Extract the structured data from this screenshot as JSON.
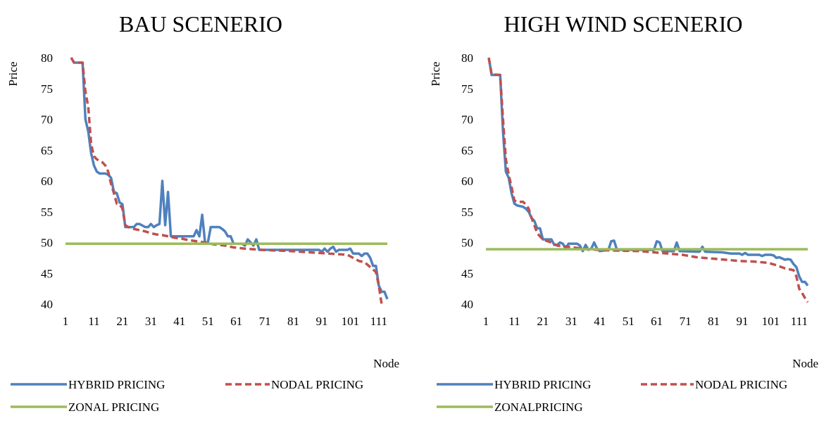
{
  "chart_data": [
    {
      "type": "line",
      "title": "BAU SCENERIO",
      "xlabel": "Node",
      "ylabel": "Price",
      "ylim": [
        40,
        80
      ],
      "xlim": [
        1,
        114
      ],
      "yticks": [
        "40",
        "45",
        "50",
        "55",
        "60",
        "65",
        "70",
        "75",
        "80"
      ],
      "xticks": [
        "1",
        "11",
        "21",
        "31",
        "41",
        "51",
        "61",
        "71",
        "81",
        "91",
        "101",
        "111"
      ],
      "legend_position": "bottom",
      "grid": false,
      "series": [
        {
          "name": "HYBRID PRICING",
          "color": "#4f81bd",
          "dash": "solid",
          "points": [
            [
              3,
              80
            ],
            [
              4,
              79.2
            ],
            [
              7,
              79.2
            ],
            [
              8,
              70
            ],
            [
              9,
              68
            ],
            [
              10,
              64.5
            ],
            [
              11,
              62.5
            ],
            [
              12,
              61.5
            ],
            [
              13,
              61.2
            ],
            [
              15,
              61.2
            ],
            [
              16,
              61
            ],
            [
              17,
              60.5
            ],
            [
              18,
              58.2
            ],
            [
              19,
              58
            ],
            [
              20,
              56.5
            ],
            [
              21,
              56.2
            ],
            [
              22,
              52.5
            ],
            [
              23,
              52.5
            ],
            [
              25,
              52.5
            ],
            [
              26,
              53
            ],
            [
              27,
              53
            ],
            [
              29,
              52.5
            ],
            [
              30,
              52.5
            ],
            [
              31,
              53
            ],
            [
              32,
              52.5
            ],
            [
              33,
              52.8
            ],
            [
              34,
              53
            ],
            [
              35,
              60
            ],
            [
              36,
              52.8
            ],
            [
              37,
              58.2
            ],
            [
              38,
              51
            ],
            [
              39,
              51
            ],
            [
              45,
              51
            ],
            [
              46,
              51
            ],
            [
              47,
              52
            ],
            [
              48,
              51
            ],
            [
              49,
              54.5
            ],
            [
              50,
              50
            ],
            [
              51,
              50
            ],
            [
              52,
              52.5
            ],
            [
              55,
              52.5
            ],
            [
              56,
              52.2
            ],
            [
              57,
              51.8
            ],
            [
              58,
              51
            ],
            [
              59,
              51
            ],
            [
              60,
              49.8
            ],
            [
              63,
              49.8
            ],
            [
              64,
              49.5
            ],
            [
              65,
              50.5
            ],
            [
              66,
              50
            ],
            [
              67,
              49.5
            ],
            [
              68,
              50.5
            ],
            [
              69,
              48.8
            ],
            [
              90,
              48.8
            ],
            [
              91,
              48.5
            ],
            [
              92,
              49
            ],
            [
              93,
              48.5
            ],
            [
              94,
              49
            ],
            [
              95,
              49.3
            ],
            [
              96,
              48.5
            ],
            [
              97,
              48.8
            ],
            [
              100,
              48.8
            ],
            [
              101,
              49
            ],
            [
              102,
              48.2
            ],
            [
              104,
              48.2
            ],
            [
              105,
              47.8
            ],
            [
              106,
              48.2
            ],
            [
              107,
              48.2
            ],
            [
              108,
              47.5
            ],
            [
              109,
              46.2
            ],
            [
              110,
              46.2
            ],
            [
              111,
              43
            ],
            [
              112,
              42
            ],
            [
              113,
              42
            ],
            [
              114,
              40.8
            ]
          ]
        },
        {
          "name": "NODAL PRICING",
          "color": "#c0504d",
          "dash": "dashed",
          "points": [
            [
              3,
              80
            ],
            [
              4,
              79.2
            ],
            [
              7,
              79.2
            ],
            [
              8,
              74.5
            ],
            [
              9,
              72
            ],
            [
              10,
              66
            ],
            [
              11,
              64
            ],
            [
              12,
              63.5
            ],
            [
              14,
              63
            ],
            [
              15,
              62.5
            ],
            [
              16,
              61.5
            ],
            [
              17,
              59.5
            ],
            [
              18,
              58
            ],
            [
              19,
              56.3
            ],
            [
              20,
              56.2
            ],
            [
              21,
              55.5
            ],
            [
              22,
              52.8
            ],
            [
              23,
              52.5
            ],
            [
              25,
              52.2
            ],
            [
              27,
              52
            ],
            [
              29,
              51.8
            ],
            [
              31,
              51.5
            ],
            [
              33,
              51.3
            ],
            [
              35,
              51.2
            ],
            [
              37,
              51
            ],
            [
              39,
              50.8
            ],
            [
              42,
              50.6
            ],
            [
              44,
              50.4
            ],
            [
              47,
              50.2
            ],
            [
              50,
              50
            ],
            [
              53,
              49.7
            ],
            [
              57,
              49.5
            ],
            [
              60,
              49.2
            ],
            [
              64,
              49
            ],
            [
              70,
              48.8
            ],
            [
              80,
              48.6
            ],
            [
              90,
              48.3
            ],
            [
              100,
              48
            ],
            [
              102,
              47.5
            ],
            [
              104,
              47
            ],
            [
              106,
              46.8
            ],
            [
              108,
              46
            ],
            [
              110,
              45.2
            ],
            [
              111,
              43
            ],
            [
              112,
              40
            ],
            [
              113,
              40
            ]
          ]
        },
        {
          "name": "ZONAL PRICING",
          "color": "#9bbb59",
          "dash": "solid",
          "points": [
            [
              1,
              49.8
            ],
            [
              114,
              49.8
            ]
          ]
        }
      ]
    },
    {
      "type": "line",
      "title": "HIGH WIND SCENERIO",
      "xlabel": "Node",
      "ylabel": "Price",
      "ylim": [
        40,
        80
      ],
      "xlim": [
        1,
        114
      ],
      "yticks": [
        "40",
        "45",
        "50",
        "55",
        "60",
        "65",
        "70",
        "75",
        "80"
      ],
      "xticks": [
        "1",
        "11",
        "21",
        "31",
        "41",
        "51",
        "61",
        "71",
        "81",
        "91",
        "101",
        "111"
      ],
      "legend_position": "bottom",
      "grid": false,
      "series": [
        {
          "name": "HYBRID PRICING",
          "color": "#4f81bd",
          "dash": "solid",
          "points": [
            [
              2,
              80
            ],
            [
              3,
              77.2
            ],
            [
              6,
              77.2
            ],
            [
              7,
              68
            ],
            [
              8,
              61.5
            ],
            [
              9,
              60.5
            ],
            [
              10,
              58
            ],
            [
              11,
              56.3
            ],
            [
              12,
              56
            ],
            [
              14,
              55.8
            ],
            [
              15,
              55.5
            ],
            [
              16,
              55
            ],
            [
              17,
              54
            ],
            [
              18,
              53.5
            ],
            [
              19,
              52.3
            ],
            [
              20,
              52.3
            ],
            [
              21,
              50.5
            ],
            [
              22,
              50.5
            ],
            [
              24,
              50.5
            ],
            [
              25,
              49.6
            ],
            [
              26,
              49.6
            ],
            [
              27,
              50
            ],
            [
              28,
              49.8
            ],
            [
              29,
              49
            ],
            [
              30,
              49.8
            ],
            [
              33,
              49.8
            ],
            [
              34,
              49.5
            ],
            [
              35,
              48.6
            ],
            [
              36,
              49.6
            ],
            [
              37,
              48.8
            ],
            [
              38,
              49
            ],
            [
              39,
              50
            ],
            [
              40,
              49
            ],
            [
              41,
              48.6
            ],
            [
              44,
              48.8
            ],
            [
              45,
              50.2
            ],
            [
              46,
              50.3
            ],
            [
              47,
              48.8
            ],
            [
              60,
              48.8
            ],
            [
              61,
              50.2
            ],
            [
              62,
              50
            ],
            [
              63,
              48.6
            ],
            [
              67,
              48.6
            ],
            [
              68,
              50
            ],
            [
              69,
              48.6
            ],
            [
              75,
              48.5
            ],
            [
              76,
              48.5
            ],
            [
              77,
              49.3
            ],
            [
              78,
              48.5
            ],
            [
              84,
              48.4
            ],
            [
              87,
              48.2
            ],
            [
              90,
              48.2
            ],
            [
              91,
              48
            ],
            [
              92,
              48.3
            ],
            [
              93,
              48
            ],
            [
              97,
              48
            ],
            [
              98,
              47.8
            ],
            [
              99,
              48
            ],
            [
              101,
              48
            ],
            [
              102,
              47.9
            ],
            [
              103,
              47.5
            ],
            [
              104,
              47.6
            ],
            [
              106,
              47.2
            ],
            [
              107,
              47.3
            ],
            [
              108,
              47.2
            ],
            [
              109,
              46.5
            ],
            [
              110,
              46
            ],
            [
              111,
              44.5
            ],
            [
              112,
              43.6
            ],
            [
              113,
              43.6
            ],
            [
              114,
              43
            ]
          ]
        },
        {
          "name": "NODAL PRICING",
          "color": "#c0504d",
          "dash": "dashed",
          "points": [
            [
              2,
              80
            ],
            [
              3,
              77.3
            ],
            [
              6,
              77.2
            ],
            [
              7,
              70
            ],
            [
              8,
              63.5
            ],
            [
              9,
              61
            ],
            [
              10,
              59
            ],
            [
              11,
              56.8
            ],
            [
              12,
              56.6
            ],
            [
              14,
              56.6
            ],
            [
              15,
              56.2
            ],
            [
              16,
              55.5
            ],
            [
              17,
              54
            ],
            [
              18,
              52.8
            ],
            [
              19,
              51.5
            ],
            [
              20,
              51
            ],
            [
              21,
              50.5
            ],
            [
              22,
              50.3
            ],
            [
              24,
              50
            ],
            [
              26,
              49.5
            ],
            [
              30,
              49.3
            ],
            [
              35,
              49
            ],
            [
              40,
              48.8
            ],
            [
              45,
              48.7
            ],
            [
              55,
              48.6
            ],
            [
              60,
              48.4
            ],
            [
              65,
              48.2
            ],
            [
              70,
              48
            ],
            [
              75,
              47.6
            ],
            [
              80,
              47.4
            ],
            [
              85,
              47.2
            ],
            [
              90,
              47
            ],
            [
              95,
              46.9
            ],
            [
              100,
              46.7
            ],
            [
              103,
              46.3
            ],
            [
              106,
              45.8
            ],
            [
              109,
              45.5
            ],
            [
              110,
              44.5
            ],
            [
              111,
              42.5
            ],
            [
              112,
              41.8
            ],
            [
              113,
              41
            ],
            [
              114,
              40.3
            ]
          ]
        },
        {
          "name": "ZONALPRICING",
          "color": "#9bbb59",
          "dash": "solid",
          "points": [
            [
              1,
              48.9
            ],
            [
              114,
              48.9
            ]
          ]
        }
      ]
    }
  ]
}
